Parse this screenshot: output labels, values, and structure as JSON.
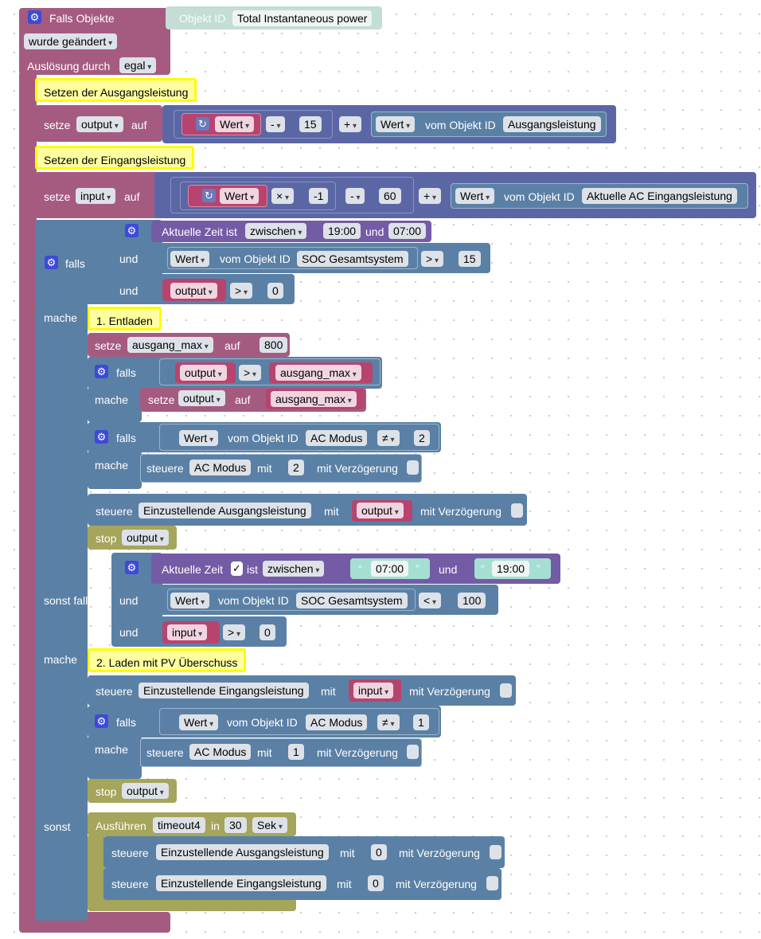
{
  "trigger": {
    "title": "Falls Objekte",
    "changed": "wurde geändert",
    "by_label": "Auslösung durch",
    "by_value": "egal",
    "obj_label": "Objekt ID",
    "obj_value": "Total Instantaneous power"
  },
  "c1": "Setzen der Ausgangsleistung",
  "set1": {
    "setze": "setze",
    "var": "output",
    "auf": "auf",
    "wert": "Wert",
    "minus": "-",
    "num": "15",
    "plus": "+",
    "wert2": "Wert",
    "vom": "vom Objekt ID",
    "obj": "Ausgangsleistung"
  },
  "c2": "Setzen der Eingangsleistung",
  "set2": {
    "setze": "setze",
    "var": "input",
    "auf": "auf",
    "wert": "Wert",
    "times": "×",
    "neg": "-1",
    "minus": "-",
    "num": "60",
    "plus": "+",
    "wert2": "Wert",
    "vom": "vom Objekt ID",
    "obj": "Aktuelle AC Eingangsleistung"
  },
  "if1": {
    "falls": "falls",
    "time_label": "Aktuelle Zeit ist",
    "time_op": "zwischen",
    "t1": "19:00",
    "und_t": "und",
    "t2": "07:00",
    "und": "und",
    "wert": "Wert",
    "vom": "vom Objekt ID",
    "obj": "SOC Gesamtsystem",
    "gt": ">",
    "num": "15",
    "var": "output",
    "gt2": ">",
    "zero": "0"
  },
  "mache": "mache",
  "c3": "1. Entladen",
  "set3": {
    "setze": "setze",
    "var": "ausgang_max",
    "auf": "auf",
    "num": "800"
  },
  "if2": {
    "falls": "falls",
    "var": "output",
    "gt": ">",
    "var2": "ausgang_max",
    "mache": "mache",
    "setze": "setze",
    "svar": "output",
    "auf": "auf",
    "val": "ausgang_max"
  },
  "if3": {
    "falls": "falls",
    "wert": "Wert",
    "vom": "vom Objekt ID",
    "obj": "AC Modus",
    "ne": "≠",
    "num": "2",
    "mache": "mache",
    "steuere": "steuere",
    "obj2": "AC Modus",
    "mit": "mit",
    "val": "2",
    "delay": "mit Verzögerung"
  },
  "ctl1": {
    "steuere": "steuere",
    "obj": "Einzustellende Ausgangsleistung",
    "mit": "mit",
    "var": "output",
    "delay": "mit Verzögerung"
  },
  "stop1": {
    "label": "stop",
    "val": "output"
  },
  "elif": {
    "label": "sonst falls",
    "time_label": "Aktuelle Zeit",
    "ist": "ist",
    "op": "zwischen",
    "t1": "07:00",
    "und_t": "und",
    "t2": "19:00",
    "und": "und",
    "wert": "Wert",
    "vom": "vom Objekt ID",
    "obj": "SOC Gesamtsystem",
    "lt": "<",
    "num": "100",
    "var": "input",
    "gt": ">",
    "zero": "0"
  },
  "mache2": "mache",
  "c4": "2. Laden mit PV Überschuss",
  "ctl2": {
    "steuere": "steuere",
    "obj": "Einzustellende Eingangsleistung",
    "mit": "mit",
    "var": "input",
    "delay": "mit Verzögerung"
  },
  "if4": {
    "falls": "falls",
    "wert": "Wert",
    "vom": "vom Objekt ID",
    "obj": "AC Modus",
    "ne": "≠",
    "num": "1",
    "mache": "mache",
    "steuere": "steuere",
    "obj2": "AC Modus",
    "mit": "mit",
    "val": "1",
    "delay": "mit Verzögerung"
  },
  "stop2": {
    "label": "stop",
    "val": "output"
  },
  "else": {
    "label": "sonst",
    "exec": "Ausführen",
    "timer": "timeout4",
    "in": "in",
    "secs": "30",
    "unit": "Sek"
  },
  "ctl3": {
    "steuere": "steuere",
    "obj": "Einzustellende Ausgangsleistung",
    "mit": "mit",
    "val": "0",
    "delay": "mit Verzögerung"
  },
  "ctl4": {
    "steuere": "steuere",
    "obj": "Einzustellende Eingangsleistung",
    "mit": "mit",
    "val": "0",
    "delay": "mit Verzögerung"
  },
  "colors": {
    "trigger": "#a55b80",
    "logic": "#5b80a5",
    "math": "#5b67a5",
    "time": "#745ba5",
    "timer": "#a5a55b",
    "comment": "#fffb00"
  }
}
